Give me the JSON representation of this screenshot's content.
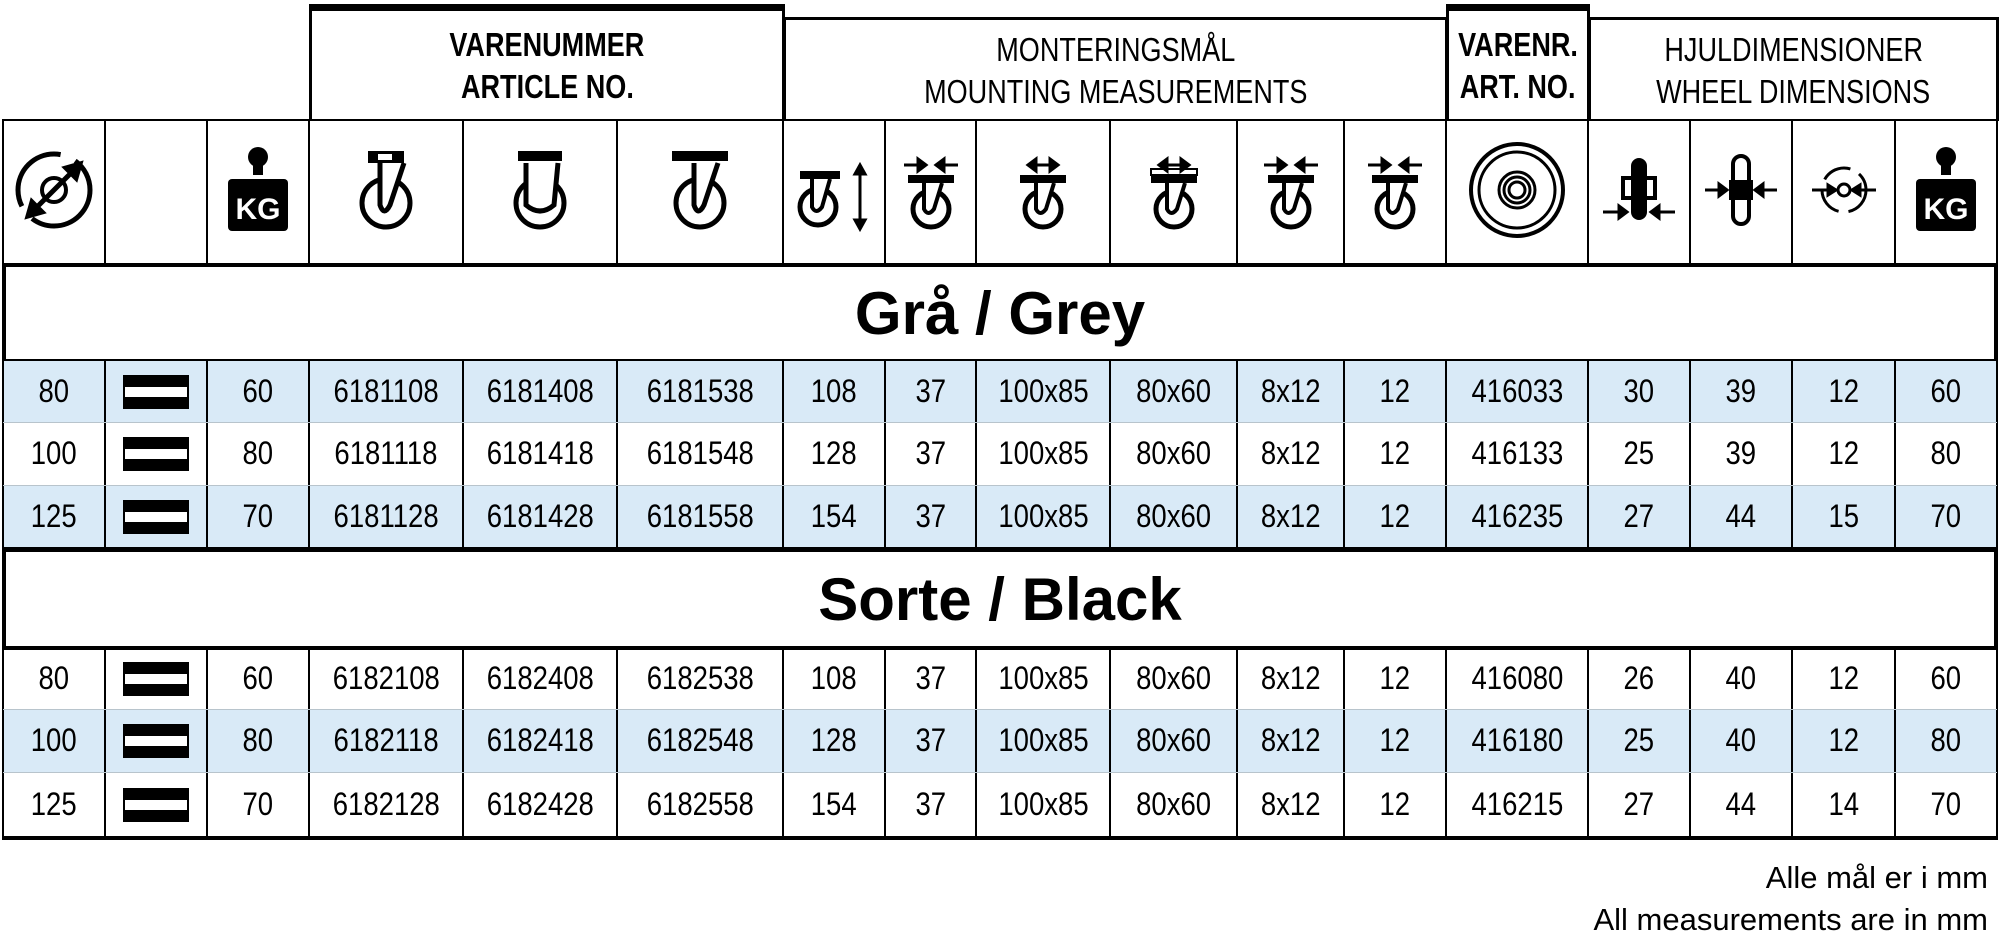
{
  "header_groups": [
    {
      "lines": [
        "VARENUMMER",
        "ARTICLE NO."
      ],
      "bold": true,
      "span": [
        3,
        6
      ]
    },
    {
      "lines": [
        "MONTERINGSMÅL",
        "MOUNTING MEASUREMENTS"
      ],
      "bold": false,
      "span": [
        6,
        12
      ]
    },
    {
      "lines": [
        "VARENR.",
        "ART. NO."
      ],
      "bold": true,
      "span": [
        12,
        13
      ]
    },
    {
      "lines": [
        "HJULDIMENSIONER",
        "WHEEL DIMENSIONS"
      ],
      "bold": false,
      "span": [
        13,
        17
      ]
    }
  ],
  "column_icons": [
    "wheel-diameter-icon",
    "tread-type-icon",
    "load-capacity-kg-icon",
    "swivel-caster-top-plate-icon",
    "fixed-caster-icon",
    "swivel-caster-icon",
    "total-height-icon",
    "offset-icon",
    "plate-size-icon",
    "bolt-hole-spacing-icon",
    "bolt-hole-size-icon",
    "bolt-hole-diameter-icon",
    "wheel-icon",
    "wheel-width-icon",
    "hub-length-icon",
    "axle-bore-icon",
    "wheel-load-kg-icon"
  ],
  "kg_label": "KG",
  "sections": [
    {
      "title": "Grå / Grey",
      "rows": [
        [
          "80",
          "",
          "60",
          "6181108",
          "6181408",
          "6181538",
          "108",
          "37",
          "100x85",
          "80x60",
          "8x12",
          "12",
          "416033",
          "30",
          "39",
          "12",
          "60"
        ],
        [
          "100",
          "",
          "80",
          "6181118",
          "6181418",
          "6181548",
          "128",
          "37",
          "100x85",
          "80x60",
          "8x12",
          "12",
          "416133",
          "25",
          "39",
          "12",
          "80"
        ],
        [
          "125",
          "",
          "70",
          "6181128",
          "6181428",
          "6181558",
          "154",
          "37",
          "100x85",
          "80x60",
          "8x12",
          "12",
          "416235",
          "27",
          "44",
          "15",
          "70"
        ]
      ]
    },
    {
      "title": "Sorte / Black",
      "rows": [
        [
          "80",
          "",
          "60",
          "6182108",
          "6182408",
          "6182538",
          "108",
          "37",
          "100x85",
          "80x60",
          "8x12",
          "12",
          "416080",
          "26",
          "40",
          "12",
          "60"
        ],
        [
          "100",
          "",
          "80",
          "6182118",
          "6182418",
          "6182548",
          "128",
          "37",
          "100x85",
          "80x60",
          "8x12",
          "12",
          "416180",
          "25",
          "40",
          "12",
          "80"
        ],
        [
          "125",
          "",
          "70",
          "6182128",
          "6182428",
          "6182558",
          "154",
          "37",
          "100x85",
          "80x60",
          "8x12",
          "12",
          "416215",
          "27",
          "44",
          "14",
          "70"
        ]
      ]
    }
  ],
  "footer": [
    "Alle mål er i mm",
    "All measurements are in mm"
  ],
  "colors": {
    "row_shade": "#d9eaf7",
    "line": "#000000"
  }
}
